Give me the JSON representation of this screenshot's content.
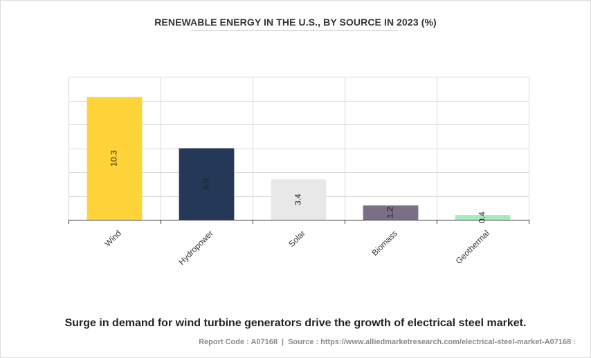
{
  "chart_data": {
    "type": "bar",
    "title": "RENEWABLE ENERGY IN THE U.S., BY SOURCE IN 2023 (%)",
    "categories": [
      "Wind",
      "Hydropower",
      "Solar",
      "Biomass",
      "Geothermal"
    ],
    "values": [
      10.3,
      6.0,
      3.4,
      1.2,
      0.4
    ],
    "value_labels": [
      "10.3",
      "6.0",
      "3.4",
      "1.2",
      "0.4"
    ],
    "colors": [
      "#ffd43b",
      "#253858",
      "#e8e8e8",
      "#7b6e87",
      "#a3ecc0"
    ],
    "xlabel": "",
    "ylabel": "",
    "ylim": [
      0,
      12
    ],
    "y_grid_step": 2,
    "grid": true,
    "legend": "none"
  },
  "caption": "Surge in demand for wind turbine generators drive the growth of electrical steel market.",
  "footer": {
    "report_code": "Report Code : A07168",
    "separator": "|",
    "source": "Source : https://www.alliedmarketresearch.com/electrical-steel-market-A07168 :"
  }
}
